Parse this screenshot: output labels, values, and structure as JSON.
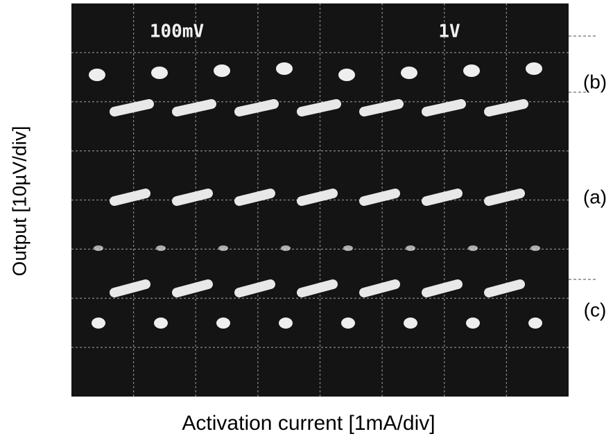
{
  "screen": {
    "labels": [
      "100mV",
      "1V"
    ]
  },
  "trace_labels": [
    "(b)",
    "(a)",
    "(c)"
  ],
  "y_axis_label": "Output [10µV/div]",
  "x_axis_label": "Activation current [1mA/div]"
}
